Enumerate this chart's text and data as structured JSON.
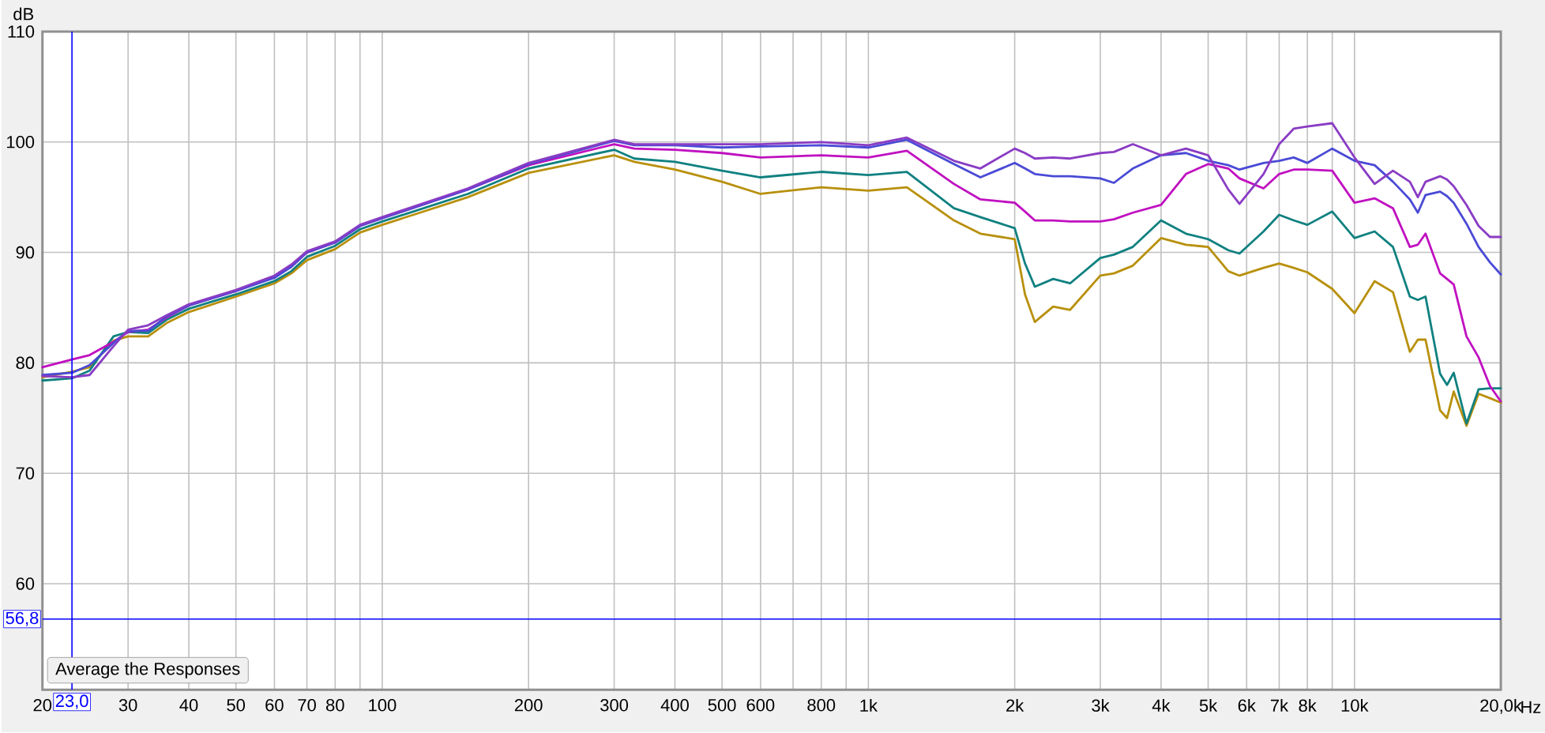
{
  "chart_data": {
    "type": "line",
    "xlabel": "Hz",
    "ylabel": "dB",
    "log": "x",
    "grid": true,
    "xlim": [
      20,
      20000
    ],
    "ylim": [
      50.4,
      110
    ],
    "xticks": [
      20,
      30,
      40,
      50,
      60,
      70,
      80,
      {
        "value": 90,
        "label": null
      },
      100,
      200,
      300,
      400,
      500,
      600,
      {
        "value": 700,
        "label": null
      },
      800,
      {
        "value": 900,
        "label": null
      },
      {
        "value": 1000,
        "label": "1k"
      },
      {
        "value": 2000,
        "label": "2k"
      },
      {
        "value": 3000,
        "label": "3k"
      },
      {
        "value": 4000,
        "label": "4k"
      },
      {
        "value": 5000,
        "label": "5k"
      },
      {
        "value": 6000,
        "label": "6k"
      },
      {
        "value": 7000,
        "label": "7k"
      },
      {
        "value": 8000,
        "label": "8k"
      },
      {
        "value": 9000,
        "label": null
      },
      {
        "value": 10000,
        "label": "10k"
      },
      {
        "value": 20000,
        "label": "20,0k"
      }
    ],
    "yticks": [
      60,
      70,
      80,
      90,
      100,
      110
    ],
    "x": [
      20,
      23,
      25,
      28,
      30,
      33,
      36,
      40,
      50,
      60,
      65,
      70,
      80,
      90,
      100,
      150,
      200,
      300,
      330,
      400,
      500,
      600,
      800,
      1000,
      1200,
      1500,
      1700,
      2000,
      2100,
      2200,
      2400,
      2600,
      3000,
      3200,
      3500,
      4000,
      4500,
      5000,
      5500,
      5800,
      6500,
      7000,
      7500,
      8000,
      9000,
      10000,
      11000,
      12000,
      13000,
      13500,
      14000,
      15000,
      15500,
      16000,
      17000,
      18000,
      19000,
      20000
    ],
    "series": [
      {
        "color": "#b8900c",
        "values": [
          78.7,
          79.2,
          79.6,
          82.0,
          82.4,
          82.4,
          83.6,
          84.6,
          86.0,
          87.2,
          88.1,
          89.3,
          90.3,
          91.8,
          92.5,
          95.0,
          97.2,
          98.8,
          98.2,
          97.5,
          96.4,
          95.3,
          95.9,
          95.6,
          95.9,
          92.9,
          91.7,
          91.2,
          86.2,
          83.7,
          85.1,
          84.8,
          87.9,
          88.1,
          88.8,
          91.3,
          90.7,
          90.5,
          88.3,
          87.9,
          88.6,
          89.0,
          88.6,
          88.2,
          86.7,
          84.5,
          87.4,
          86.4,
          81.0,
          82.1,
          82.1,
          75.7,
          75.0,
          77.4,
          74.3,
          77.2,
          76.8,
          76.4
        ]
      },
      {
        "color": "#108080",
        "values": [
          78.4,
          78.6,
          79.3,
          82.4,
          82.8,
          82.7,
          83.9,
          84.9,
          86.2,
          87.4,
          88.3,
          89.6,
          90.6,
          92.1,
          92.8,
          95.3,
          97.6,
          99.3,
          98.5,
          98.2,
          97.4,
          96.8,
          97.3,
          97.0,
          97.3,
          94.0,
          93.2,
          92.2,
          89.0,
          86.9,
          87.6,
          87.2,
          89.5,
          89.8,
          90.5,
          92.9,
          91.7,
          91.2,
          90.2,
          89.9,
          91.9,
          93.4,
          92.9,
          92.5,
          93.7,
          91.3,
          91.9,
          90.5,
          86.0,
          85.7,
          86.0,
          79.0,
          78.0,
          79.1,
          74.5,
          77.6,
          77.7,
          77.7
        ]
      },
      {
        "color": "#c010c0",
        "values": [
          79.6,
          80.3,
          80.7,
          81.9,
          82.8,
          83.0,
          84.1,
          85.2,
          86.5,
          87.8,
          88.7,
          90.0,
          90.9,
          92.4,
          93.1,
          95.7,
          97.9,
          99.8,
          99.4,
          99.3,
          99.0,
          98.6,
          98.8,
          98.6,
          99.2,
          96.2,
          94.8,
          94.5,
          93.7,
          92.9,
          92.9,
          92.8,
          92.8,
          93.0,
          93.6,
          94.3,
          97.1,
          98.0,
          97.6,
          96.7,
          95.8,
          97.1,
          97.5,
          97.5,
          97.4,
          94.5,
          94.9,
          94.0,
          90.5,
          90.7,
          91.7,
          88.1,
          87.6,
          87.1,
          82.4,
          80.5,
          77.9,
          76.5
        ]
      },
      {
        "color": "#4a4ad6",
        "values": [
          78.9,
          79.1,
          79.8,
          81.8,
          82.9,
          82.9,
          84.2,
          85.2,
          86.5,
          87.7,
          88.7,
          90.0,
          90.9,
          92.4,
          93.1,
          95.7,
          98.0,
          100.1,
          99.7,
          99.7,
          99.5,
          99.6,
          99.7,
          99.5,
          100.2,
          98.0,
          96.8,
          98.1,
          97.6,
          97.1,
          96.9,
          96.9,
          96.7,
          96.3,
          97.6,
          98.8,
          99.0,
          98.3,
          97.9,
          97.5,
          98.1,
          98.3,
          98.6,
          98.1,
          99.4,
          98.3,
          97.9,
          96.4,
          94.8,
          93.6,
          95.2,
          95.5,
          95.1,
          94.5,
          92.6,
          90.5,
          89.1,
          88.0
        ]
      },
      {
        "color": "#8a3cc4",
        "values": [
          78.8,
          78.7,
          78.9,
          81.5,
          83.0,
          83.4,
          84.3,
          85.3,
          86.6,
          87.9,
          88.9,
          90.1,
          91.0,
          92.5,
          93.2,
          95.8,
          98.1,
          100.2,
          99.8,
          99.8,
          99.8,
          99.8,
          100.0,
          99.7,
          100.4,
          98.3,
          97.6,
          99.4,
          99.0,
          98.5,
          98.6,
          98.5,
          99.0,
          99.1,
          99.8,
          98.8,
          99.4,
          98.8,
          95.7,
          94.4,
          97.1,
          99.8,
          101.2,
          101.4,
          101.7,
          98.6,
          96.2,
          97.4,
          96.4,
          95.0,
          96.4,
          96.9,
          96.6,
          96.0,
          94.3,
          92.4,
          91.4,
          91.4
        ]
      }
    ],
    "ref_lines": [
      {
        "axis": "x",
        "value": 23.0,
        "label": "23,0",
        "color": "#0000ff"
      },
      {
        "axis": "y",
        "value": 56.8,
        "label": "56,8",
        "color": "#0000ff"
      }
    ],
    "annotations": [
      "Average the Responses"
    ]
  }
}
